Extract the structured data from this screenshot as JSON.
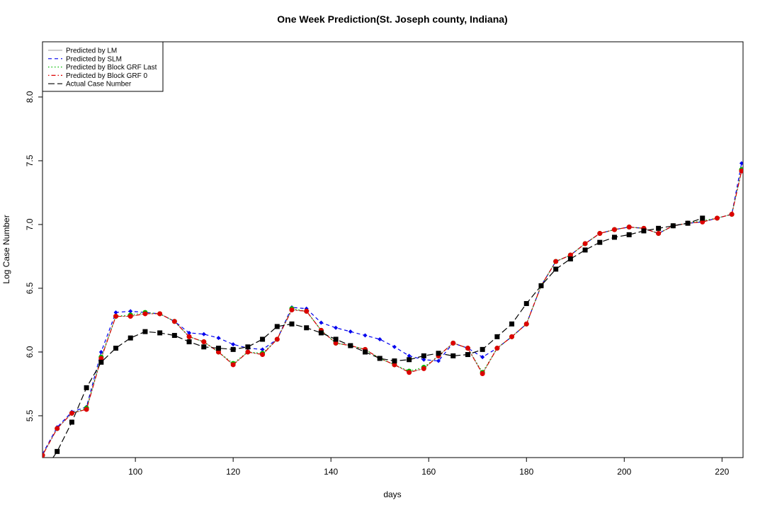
{
  "chart_data": {
    "type": "line",
    "title": "One Week Prediction(St. Joseph county, Indiana)",
    "x_label": "days",
    "y_label": "Log Case Number",
    "xlim": [
      81,
      224.3
    ],
    "ylim": [
      5.172,
      8.433
    ],
    "xticks": [
      100,
      120,
      140,
      160,
      180,
      200,
      220
    ],
    "yticks": [
      5.5,
      {
        "value": 6,
        "label": "6.0"
      },
      6.5,
      {
        "value": 7,
        "label": "7.0"
      },
      7.5,
      {
        "value": 8,
        "label": "8.0"
      }
    ],
    "legend": "top-left",
    "x": [
      81,
      84,
      87,
      90,
      93,
      96,
      99,
      102,
      105,
      108,
      111,
      114,
      117,
      120,
      123,
      126,
      129,
      132,
      135,
      138,
      141,
      144,
      147,
      150,
      153,
      156,
      159,
      162,
      165,
      168,
      171,
      174,
      177,
      180,
      183,
      186,
      189,
      192,
      195,
      198,
      201,
      204,
      207,
      210,
      213,
      216,
      219,
      222,
      224
    ],
    "series": [
      {
        "name": "Predicted by LM",
        "color": "#b0b0b0",
        "line_style": "solid",
        "marker": "none",
        "values": [
          5.19,
          5.4,
          5.52,
          5.55,
          5.95,
          6.28,
          6.28,
          6.3,
          6.3,
          6.24,
          6.12,
          6.08,
          6.0,
          5.9,
          6.0,
          5.98,
          6.1,
          6.33,
          6.32,
          6.17,
          6.07,
          6.05,
          6.02,
          5.95,
          5.9,
          5.84,
          5.87,
          5.97,
          6.07,
          6.03,
          5.83,
          6.03,
          6.12,
          6.22,
          6.52,
          6.71,
          6.76,
          6.85,
          6.93,
          6.96,
          6.98,
          6.97,
          6.93,
          6.99,
          7.01,
          7.02,
          7.05,
          7.08,
          7.42
        ]
      },
      {
        "name": "Predicted by SLM",
        "color": "#0000ee",
        "line_style": "dashed",
        "marker": "diamond",
        "values": [
          5.2,
          5.41,
          5.53,
          5.57,
          6.0,
          6.31,
          6.32,
          6.31,
          6.3,
          6.24,
          6.15,
          6.14,
          6.11,
          6.06,
          6.03,
          6.02,
          6.1,
          6.35,
          6.34,
          6.23,
          6.19,
          6.16,
          6.13,
          6.1,
          6.04,
          5.97,
          5.94,
          5.93,
          6.07,
          6.03,
          5.96,
          6.03,
          6.12,
          6.22,
          6.52,
          6.71,
          6.76,
          6.85,
          6.93,
          6.96,
          6.98,
          6.97,
          6.93,
          6.99,
          7.01,
          7.02,
          7.05,
          7.08,
          7.48
        ]
      },
      {
        "name": "Predicted by Block GRF Last",
        "color": "#00bb00",
        "line_style": "dotted",
        "marker": "circle",
        "values": [
          5.19,
          5.4,
          5.52,
          5.56,
          5.96,
          6.28,
          6.29,
          6.31,
          6.3,
          6.24,
          6.12,
          6.08,
          6.0,
          5.91,
          6.0,
          5.99,
          6.1,
          6.34,
          6.32,
          6.17,
          6.07,
          6.05,
          6.02,
          5.95,
          5.9,
          5.85,
          5.88,
          5.97,
          6.07,
          6.03,
          5.84,
          6.03,
          6.12,
          6.22,
          6.52,
          6.71,
          6.76,
          6.85,
          6.93,
          6.96,
          6.98,
          6.97,
          6.93,
          6.99,
          7.01,
          7.03,
          7.05,
          7.08,
          7.43
        ]
      },
      {
        "name": "Predicted by Block GRF 0",
        "color": "#dd0000",
        "line_style": "dotdash",
        "marker": "circle",
        "values": [
          5.19,
          5.4,
          5.52,
          5.55,
          5.95,
          6.28,
          6.28,
          6.3,
          6.3,
          6.24,
          6.12,
          6.08,
          6.0,
          5.9,
          6.0,
          5.98,
          6.1,
          6.33,
          6.32,
          6.17,
          6.07,
          6.05,
          6.02,
          5.95,
          5.9,
          5.84,
          5.87,
          5.97,
          6.07,
          6.03,
          5.83,
          6.03,
          6.12,
          6.22,
          6.52,
          6.71,
          6.76,
          6.85,
          6.93,
          6.96,
          6.98,
          6.97,
          6.93,
          6.99,
          7.01,
          7.02,
          7.05,
          7.08,
          7.42
        ]
      },
      {
        "name": "Actual Case Number",
        "color": "#000000",
        "line_style": "longdash",
        "marker": "square",
        "values": [
          5.05,
          5.22,
          5.45,
          5.72,
          5.92,
          6.03,
          6.11,
          6.16,
          6.15,
          6.13,
          6.08,
          6.04,
          6.03,
          6.02,
          6.04,
          6.1,
          6.2,
          6.22,
          6.19,
          6.15,
          6.1,
          6.05,
          6.0,
          5.95,
          5.93,
          5.94,
          5.97,
          5.99,
          5.97,
          5.98,
          6.02,
          6.12,
          6.22,
          6.38,
          6.52,
          6.65,
          6.73,
          6.8,
          6.86,
          6.9,
          6.92,
          6.95,
          6.97,
          6.99,
          7.01,
          7.05,
          null,
          null,
          null
        ]
      }
    ]
  }
}
